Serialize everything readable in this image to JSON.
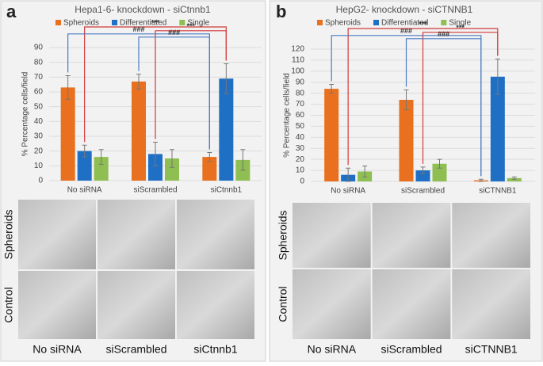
{
  "chart_data": [
    {
      "type": "bar",
      "panel_label": "a",
      "title": "Hepa1-6- knockdown - siCtnnb1",
      "y_label": "% Percentage cells/field",
      "categories": [
        "No siRNA",
        "siScrambled",
        "siCtnnb1"
      ],
      "series": [
        {
          "name": "Spheroids",
          "color": "#e8701e",
          "values": [
            63,
            67,
            16
          ],
          "errors": [
            8,
            5,
            3
          ]
        },
        {
          "name": "Differentiated",
          "color": "#1f6fc5",
          "values": [
            20,
            18,
            69
          ],
          "errors": [
            4,
            8,
            10
          ]
        },
        {
          "name": "Single",
          "color": "#8fbe52",
          "values": [
            16,
            15,
            14
          ],
          "errors": [
            5,
            6,
            7
          ]
        }
      ],
      "ylim": [
        0,
        90
      ],
      "yticks": [
        0,
        10,
        20,
        30,
        40,
        50,
        60,
        70,
        80,
        90
      ],
      "grid": true,
      "annotations": [
        "***",
        "###",
        "***",
        "###"
      ],
      "image_rows": [
        "Spheroids",
        "Control"
      ],
      "image_columns": [
        "No siRNA",
        "siScrambled",
        "siCtnnb1"
      ]
    },
    {
      "type": "bar",
      "panel_label": "b",
      "title": "HepG2- knockdown - siCTNNB1",
      "y_label": "% Percentage cells/field",
      "categories": [
        "No siRNA",
        "siScrambled",
        "siCTNNB1"
      ],
      "series": [
        {
          "name": "Spheroids",
          "color": "#e8701e",
          "values": [
            84,
            74,
            1
          ],
          "errors": [
            4,
            9,
            1
          ]
        },
        {
          "name": "Differentiated",
          "color": "#1f6fc5",
          "values": [
            6,
            10,
            95
          ],
          "errors": [
            6,
            3,
            16
          ]
        },
        {
          "name": "Single",
          "color": "#8fbe52",
          "values": [
            9,
            16,
            3
          ],
          "errors": [
            5,
            4,
            1
          ]
        }
      ],
      "ylim": [
        0,
        120
      ],
      "yticks": [
        0,
        10,
        20,
        30,
        40,
        50,
        60,
        70,
        80,
        90,
        100,
        110,
        120
      ],
      "grid": true,
      "annotations": [
        "***",
        "###",
        "***",
        "###"
      ],
      "image_rows": [
        "Spheroids",
        "Control"
      ],
      "image_columns": [
        "No siRNA",
        "siScrambled",
        "siCTNNB1"
      ]
    }
  ]
}
